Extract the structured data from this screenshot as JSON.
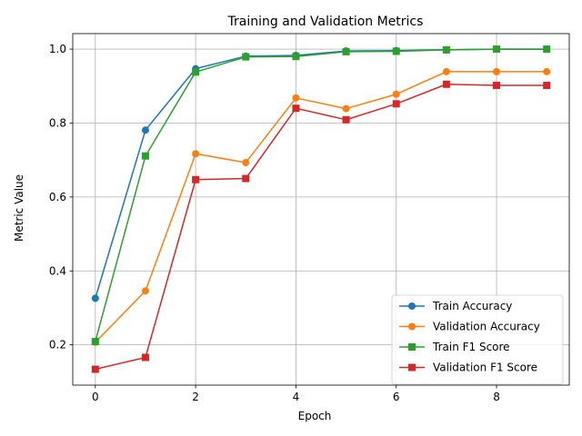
{
  "chart_data": {
    "type": "line",
    "title": "Training and Validation Metrics",
    "xlabel": "Epoch",
    "ylabel": "Metric Value",
    "x": [
      0,
      1,
      2,
      3,
      4,
      5,
      6,
      7,
      8,
      9
    ],
    "xlim": [
      -0.45,
      9.45
    ],
    "ylim": [
      0.091,
      1.042
    ],
    "xticks": [
      0,
      2,
      4,
      6,
      8
    ],
    "yticks": [
      0.2,
      0.4,
      0.6,
      0.8,
      1.0
    ],
    "xtick_labels": [
      "0",
      "2",
      "4",
      "6",
      "8"
    ],
    "ytick_labels": [
      "0.2",
      "0.4",
      "0.6",
      "0.8",
      "1.0"
    ],
    "grid": true,
    "legend_position": "lower right",
    "series": [
      {
        "name": "Train Accuracy",
        "color": "#1f77b4",
        "marker": "circle",
        "values": [
          0.326,
          0.781,
          0.947,
          0.981,
          0.983,
          0.995,
          0.996,
          0.998,
          1.0,
          1.0
        ]
      },
      {
        "name": "Validation Accuracy",
        "color": "#ff7f0e",
        "marker": "circle",
        "values": [
          0.207,
          0.346,
          0.717,
          0.693,
          0.868,
          0.839,
          0.878,
          0.939,
          0.939,
          0.939
        ]
      },
      {
        "name": "Train F1 Score",
        "color": "#2ca02c",
        "marker": "square",
        "values": [
          0.209,
          0.711,
          0.938,
          0.979,
          0.98,
          0.993,
          0.994,
          0.998,
          1.0,
          1.0
        ]
      },
      {
        "name": "Validation F1 Score",
        "color": "#d62728",
        "marker": "square",
        "values": [
          0.134,
          0.166,
          0.647,
          0.65,
          0.84,
          0.809,
          0.852,
          0.905,
          0.902,
          0.902
        ]
      }
    ]
  }
}
